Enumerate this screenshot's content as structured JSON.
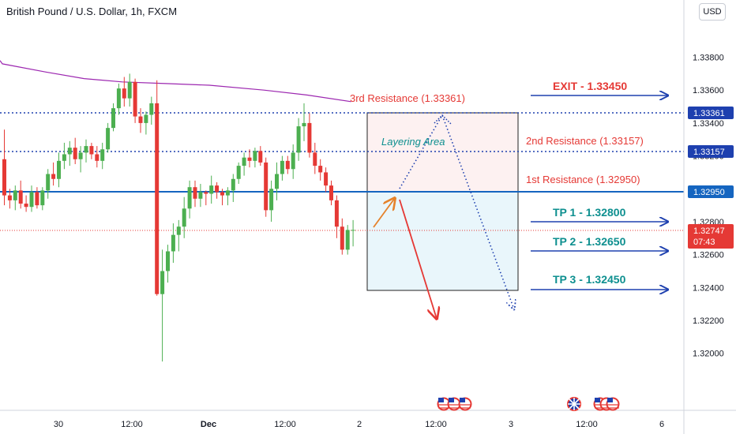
{
  "header": {
    "title": "British Pound / U.S. Dollar, 1h, FXCM",
    "currency_button": "USD"
  },
  "colors": {
    "up": "#4caf50",
    "down": "#e53935",
    "ma": "#9c27b0",
    "level_blue": "#1e40af",
    "support_line": "#1565c0",
    "red_text": "#e53935",
    "teal_text": "#0d8f8f",
    "resistance_box": "#fdf1f1",
    "support_box": "#e9f6fb",
    "arrow_orange": "#e5822b",
    "arrow_red": "#e53935",
    "axis_text": "#131722"
  },
  "chart_data": {
    "type": "candlestick",
    "symbol": "GBP/USD",
    "interval": "1h",
    "ylim": [
      1.3185,
      1.3398
    ],
    "y_ticks": [
      "1.33800",
      "1.33600",
      "1.33400",
      "1.33200",
      "1.33000",
      "1.32800",
      "1.32600",
      "1.32400",
      "1.32200",
      "1.32000"
    ],
    "x_ticks": [
      "30",
      "12:00",
      "Dec",
      "12:00",
      "2",
      "12:00",
      "3",
      "12:00",
      "6"
    ],
    "candles": [
      [
        1.3318,
        1.3336,
        1.329,
        1.3296
      ],
      [
        1.3296,
        1.33,
        1.3288,
        1.3293
      ],
      [
        1.3293,
        1.3302,
        1.3287,
        1.3299
      ],
      [
        1.3299,
        1.3305,
        1.3288,
        1.3291
      ],
      [
        1.3291,
        1.3296,
        1.3286,
        1.3289
      ],
      [
        1.3289,
        1.3302,
        1.3286,
        1.3298
      ],
      [
        1.3298,
        1.3301,
        1.3288,
        1.329
      ],
      [
        1.329,
        1.3301,
        1.3287,
        1.3299
      ],
      [
        1.3299,
        1.3312,
        1.3294,
        1.3309
      ],
      [
        1.3309,
        1.3316,
        1.3302,
        1.3306
      ],
      [
        1.3306,
        1.3322,
        1.3301,
        1.3317
      ],
      [
        1.3317,
        1.3328,
        1.3312,
        1.3321
      ],
      [
        1.3321,
        1.3329,
        1.3314,
        1.3325
      ],
      [
        1.3325,
        1.3331,
        1.3315,
        1.3318
      ],
      [
        1.3318,
        1.3326,
        1.331,
        1.3322
      ],
      [
        1.3322,
        1.333,
        1.3316,
        1.3326
      ],
      [
        1.3326,
        1.3328,
        1.3318,
        1.3321
      ],
      [
        1.3321,
        1.3326,
        1.3313,
        1.3317
      ],
      [
        1.3317,
        1.3328,
        1.3312,
        1.3324
      ],
      [
        1.3324,
        1.334,
        1.3322,
        1.3337
      ],
      [
        1.3337,
        1.3352,
        1.3335,
        1.3349
      ],
      [
        1.3349,
        1.3364,
        1.3345,
        1.3361
      ],
      [
        1.3361,
        1.3368,
        1.335,
        1.3355
      ],
      [
        1.3355,
        1.337,
        1.335,
        1.3365
      ],
      [
        1.3365,
        1.3367,
        1.334,
        1.3344
      ],
      [
        1.3344,
        1.3349,
        1.3334,
        1.334
      ],
      [
        1.334,
        1.3347,
        1.3333,
        1.3345
      ],
      [
        1.3345,
        1.3356,
        1.3339,
        1.3352
      ],
      [
        1.3352,
        1.3366,
        1.3235,
        1.3236
      ],
      [
        1.3236,
        1.3263,
        1.3195,
        1.325
      ],
      [
        1.325,
        1.3266,
        1.3243,
        1.3262
      ],
      [
        1.3262,
        1.3279,
        1.3255,
        1.3272
      ],
      [
        1.3272,
        1.3281,
        1.3262,
        1.3277
      ],
      [
        1.3277,
        1.3295,
        1.327,
        1.3288
      ],
      [
        1.3288,
        1.3305,
        1.3282,
        1.3301
      ],
      [
        1.3301,
        1.3305,
        1.3289,
        1.3294
      ],
      [
        1.3294,
        1.3303,
        1.3289,
        1.3298
      ],
      [
        1.3298,
        1.3299,
        1.329,
        1.3297
      ],
      [
        1.3297,
        1.3308,
        1.3291,
        1.3302
      ],
      [
        1.3302,
        1.3304,
        1.3294,
        1.3298
      ],
      [
        1.3298,
        1.33,
        1.329,
        1.3296
      ],
      [
        1.3296,
        1.3301,
        1.329,
        1.3299
      ],
      [
        1.3299,
        1.3309,
        1.3292,
        1.3306
      ],
      [
        1.3306,
        1.3316,
        1.3303,
        1.3314
      ],
      [
        1.3314,
        1.3322,
        1.3308,
        1.3319
      ],
      [
        1.3319,
        1.3324,
        1.3313,
        1.3317
      ],
      [
        1.3317,
        1.3325,
        1.3313,
        1.3323
      ],
      [
        1.3323,
        1.3326,
        1.3314,
        1.3316
      ],
      [
        1.3316,
        1.3319,
        1.3283,
        1.3287
      ],
      [
        1.3287,
        1.3305,
        1.328,
        1.33
      ],
      [
        1.33,
        1.3316,
        1.3293,
        1.3309
      ],
      [
        1.3309,
        1.332,
        1.3305,
        1.3317
      ],
      [
        1.3317,
        1.332,
        1.3309,
        1.3312
      ],
      [
        1.3312,
        1.3327,
        1.3306,
        1.3322
      ],
      [
        1.3322,
        1.3343,
        1.3317,
        1.3338
      ],
      [
        1.3338,
        1.3352,
        1.3329,
        1.334
      ],
      [
        1.334,
        1.3346,
        1.3319,
        1.3322
      ],
      [
        1.3322,
        1.3328,
        1.3309,
        1.3314
      ],
      [
        1.3314,
        1.3318,
        1.3305,
        1.331
      ],
      [
        1.331,
        1.3313,
        1.3298,
        1.3302
      ],
      [
        1.3302,
        1.3305,
        1.329,
        1.3293
      ],
      [
        1.3293,
        1.3296,
        1.327,
        1.3277
      ],
      [
        1.3277,
        1.3282,
        1.326,
        1.3263
      ],
      [
        1.3263,
        1.3278,
        1.326,
        1.3275
      ],
      [
        1.3275,
        1.3281,
        1.3265,
        1.3275
      ]
    ],
    "moving_average": {
      "x": [
        0,
        8,
        15,
        22,
        30,
        38,
        48,
        56,
        64
      ],
      "y": [
        1.3376,
        1.3371,
        1.3367,
        1.3365,
        1.3364,
        1.3363,
        1.336,
        1.3357,
        1.3353
      ]
    },
    "current_price": {
      "value": 1.32747,
      "label": "1.32747",
      "countdown": "07:43"
    },
    "horizontal_levels": [
      {
        "value": 1.33361,
        "label": "1.33361",
        "style": "dotted"
      },
      {
        "value": 1.33157,
        "label": "1.33157",
        "style": "dotted"
      },
      {
        "value": 1.3295,
        "label": "1.32950",
        "style": "solid"
      }
    ],
    "annotations": {
      "resistance_labels": [
        "3rd Resistance (1.33361)",
        "2nd Resistance (1.33157)",
        "1st Resistance (1.32950)"
      ],
      "targets": [
        "EXIT - 1.33450",
        "TP 1 - 1.32800",
        "TP 2 - 1.32650",
        "TP 3 - 1.32450"
      ],
      "layering": "Layering Area"
    },
    "event_icons": [
      "us-flag",
      "us-flag",
      "us-flag",
      "uk-flag",
      "us-flag",
      "us-flag",
      "us-flag"
    ]
  }
}
